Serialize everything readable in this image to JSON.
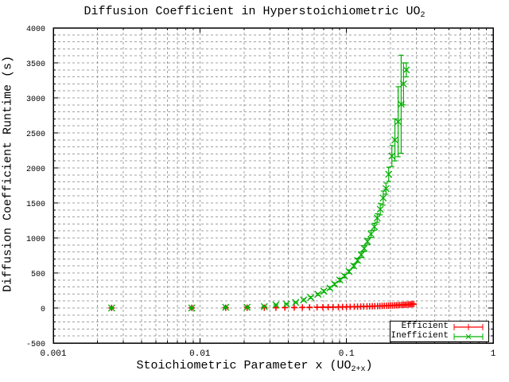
{
  "title": "Diffusion Coefficient in Hyperstoichiometric UO",
  "title_sub": "2",
  "xlabel_prefix": "Stoichiometric Parameter x  (UO",
  "xlabel_sub": "2+x",
  "xlabel_suffix": ")",
  "ylabel": "Diffusion Coefficient Runtime (s)",
  "legend": {
    "efficient": "Efficient",
    "inefficient": "Inefficient"
  },
  "colors": {
    "efficient": "#ff0000",
    "inefficient": "#00b000",
    "grid": "#a0a0a0"
  },
  "chart_data": {
    "type": "scatter",
    "title": "Diffusion Coefficient in Hyperstoichiometric UO2",
    "xlabel": "Stoichiometric Parameter x  (UO2+x)",
    "ylabel": "Diffusion Coefficient Runtime (s)",
    "xscale": "log",
    "xlim": [
      0.001,
      1
    ],
    "ylim": [
      -500,
      4000
    ],
    "xticks": [
      "0.001",
      "0.01",
      "0.1",
      "1"
    ],
    "yticks": [
      "-500",
      "0",
      "500",
      "1000",
      "1500",
      "2000",
      "2500",
      "3000",
      "3500",
      "4000"
    ],
    "grid": true,
    "legend_position": "bottom-right",
    "series": [
      {
        "name": "Efficient",
        "color": "#ff0000",
        "marker": "+",
        "error_bars": true,
        "x": [
          0.0025,
          0.0088,
          0.015,
          0.021,
          0.0275,
          0.033,
          0.038,
          0.044,
          0.05,
          0.056,
          0.063,
          0.069,
          0.075,
          0.081,
          0.088,
          0.094,
          0.1,
          0.106,
          0.113,
          0.119,
          0.125,
          0.131,
          0.138,
          0.144,
          0.15,
          0.156,
          0.163,
          0.169,
          0.175,
          0.181,
          0.188,
          0.194,
          0.2,
          0.206,
          0.213,
          0.219,
          0.225,
          0.231,
          0.238,
          0.244,
          0.25,
          0.256,
          0.263,
          0.269,
          0.275,
          0.281,
          0.288
        ],
        "y": [
          2,
          3,
          3,
          4,
          4,
          5,
          6,
          7,
          8,
          9,
          10,
          11,
          12,
          13,
          14,
          15,
          16,
          17,
          18,
          19,
          20,
          21,
          22,
          24,
          25,
          26,
          27,
          28,
          30,
          31,
          32,
          34,
          35,
          36,
          38,
          39,
          40,
          42,
          43,
          45,
          46,
          48,
          49,
          51,
          52,
          54,
          56
        ]
      },
      {
        "name": "Inefficient",
        "color": "#00b000",
        "marker": "x",
        "error_bars": true,
        "x": [
          0.0025,
          0.0088,
          0.015,
          0.021,
          0.0275,
          0.033,
          0.039,
          0.045,
          0.051,
          0.057,
          0.064,
          0.07,
          0.077,
          0.083,
          0.09,
          0.097,
          0.104,
          0.112,
          0.119,
          0.126,
          0.132,
          0.139,
          0.147,
          0.155,
          0.162,
          0.17,
          0.178,
          0.186,
          0.194,
          0.204,
          0.214,
          0.225,
          0.236,
          0.245,
          0.256
        ],
        "y": [
          0,
          0,
          10,
          10,
          20,
          45,
          55,
          80,
          115,
          150,
          195,
          240,
          285,
          340,
          400,
          455,
          520,
          600,
          680,
          760,
          850,
          950,
          1055,
          1160,
          1285,
          1410,
          1570,
          1705,
          1910,
          2170,
          2400,
          2660,
          2910,
          3200,
          3400
        ],
        "yerr": [
          5,
          5,
          5,
          5,
          5,
          10,
          10,
          10,
          15,
          15,
          15,
          20,
          20,
          20,
          25,
          25,
          25,
          30,
          30,
          40,
          40,
          40,
          50,
          50,
          60,
          80,
          100,
          80,
          100,
          150,
          300,
          500,
          700,
          300,
          100
        ]
      }
    ]
  }
}
